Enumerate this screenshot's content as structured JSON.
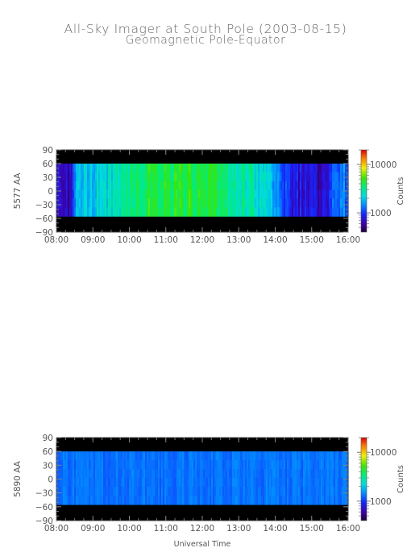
{
  "title": "All-Sky Imager at South Pole (2003-08-15)",
  "subtitle": "Geomagnetic Pole-Equator",
  "colors": {
    "background_band": "#000000",
    "no_data": "#120020",
    "text": "#555555"
  },
  "chart_data": [
    {
      "type": "heatmap",
      "ylabel": "5577 AA",
      "xlabel": "",
      "x_ticks": [
        "08:00",
        "09:00",
        "10:00",
        "11:00",
        "12:00",
        "13:00",
        "14:00",
        "15:00",
        "16:00"
      ],
      "y_ticks": [
        "90",
        "60",
        "30",
        "0",
        "−30",
        "−60",
        "−90"
      ],
      "xlim": [
        "08:00",
        "16:00"
      ],
      "ylim": [
        -90,
        90
      ],
      "data_ylim": [
        -55,
        60
      ],
      "colorbar": {
        "label": "Counts",
        "ticks": [
          "10000",
          "1000"
        ],
        "scale": "log"
      },
      "profile": [
        {
          "t": "08:00",
          "level": 0.12
        },
        {
          "t": "08:20",
          "level": 0.12
        },
        {
          "t": "08:35",
          "level": 0.38
        },
        {
          "t": "09:00",
          "level": 0.42
        },
        {
          "t": "09:30",
          "level": 0.45
        },
        {
          "t": "10:00",
          "level": 0.55
        },
        {
          "t": "10:30",
          "level": 0.6
        },
        {
          "t": "11:00",
          "level": 0.6
        },
        {
          "t": "11:30",
          "level": 0.62
        },
        {
          "t": "12:00",
          "level": 0.58
        },
        {
          "t": "12:30",
          "level": 0.57
        },
        {
          "t": "13:00",
          "level": 0.52
        },
        {
          "t": "13:30",
          "level": 0.45
        },
        {
          "t": "14:00",
          "level": 0.38
        },
        {
          "t": "14:15",
          "level": 0.22
        },
        {
          "t": "14:45",
          "level": 0.16
        },
        {
          "t": "15:15",
          "level": 0.12
        },
        {
          "t": "15:45",
          "level": 0.3
        },
        {
          "t": "16:00",
          "level": 0.32
        }
      ]
    },
    {
      "type": "heatmap",
      "ylabel": "5890 AA",
      "xlabel": "Universal Time",
      "x_ticks": [
        "08:00",
        "09:00",
        "10:00",
        "11:00",
        "12:00",
        "13:00",
        "14:00",
        "15:00",
        "16:00"
      ],
      "y_ticks": [
        "90",
        "60",
        "30",
        "0",
        "−30",
        "−60",
        "−90"
      ],
      "xlim": [
        "08:00",
        "16:00"
      ],
      "ylim": [
        -90,
        90
      ],
      "data_ylim": [
        -55,
        60
      ],
      "colorbar": {
        "label": "Counts",
        "ticks": [
          "10000",
          "1000"
        ],
        "scale": "log"
      },
      "profile": [
        {
          "t": "08:00",
          "level": 0.3
        },
        {
          "t": "16:00",
          "level": 0.3
        }
      ]
    }
  ]
}
